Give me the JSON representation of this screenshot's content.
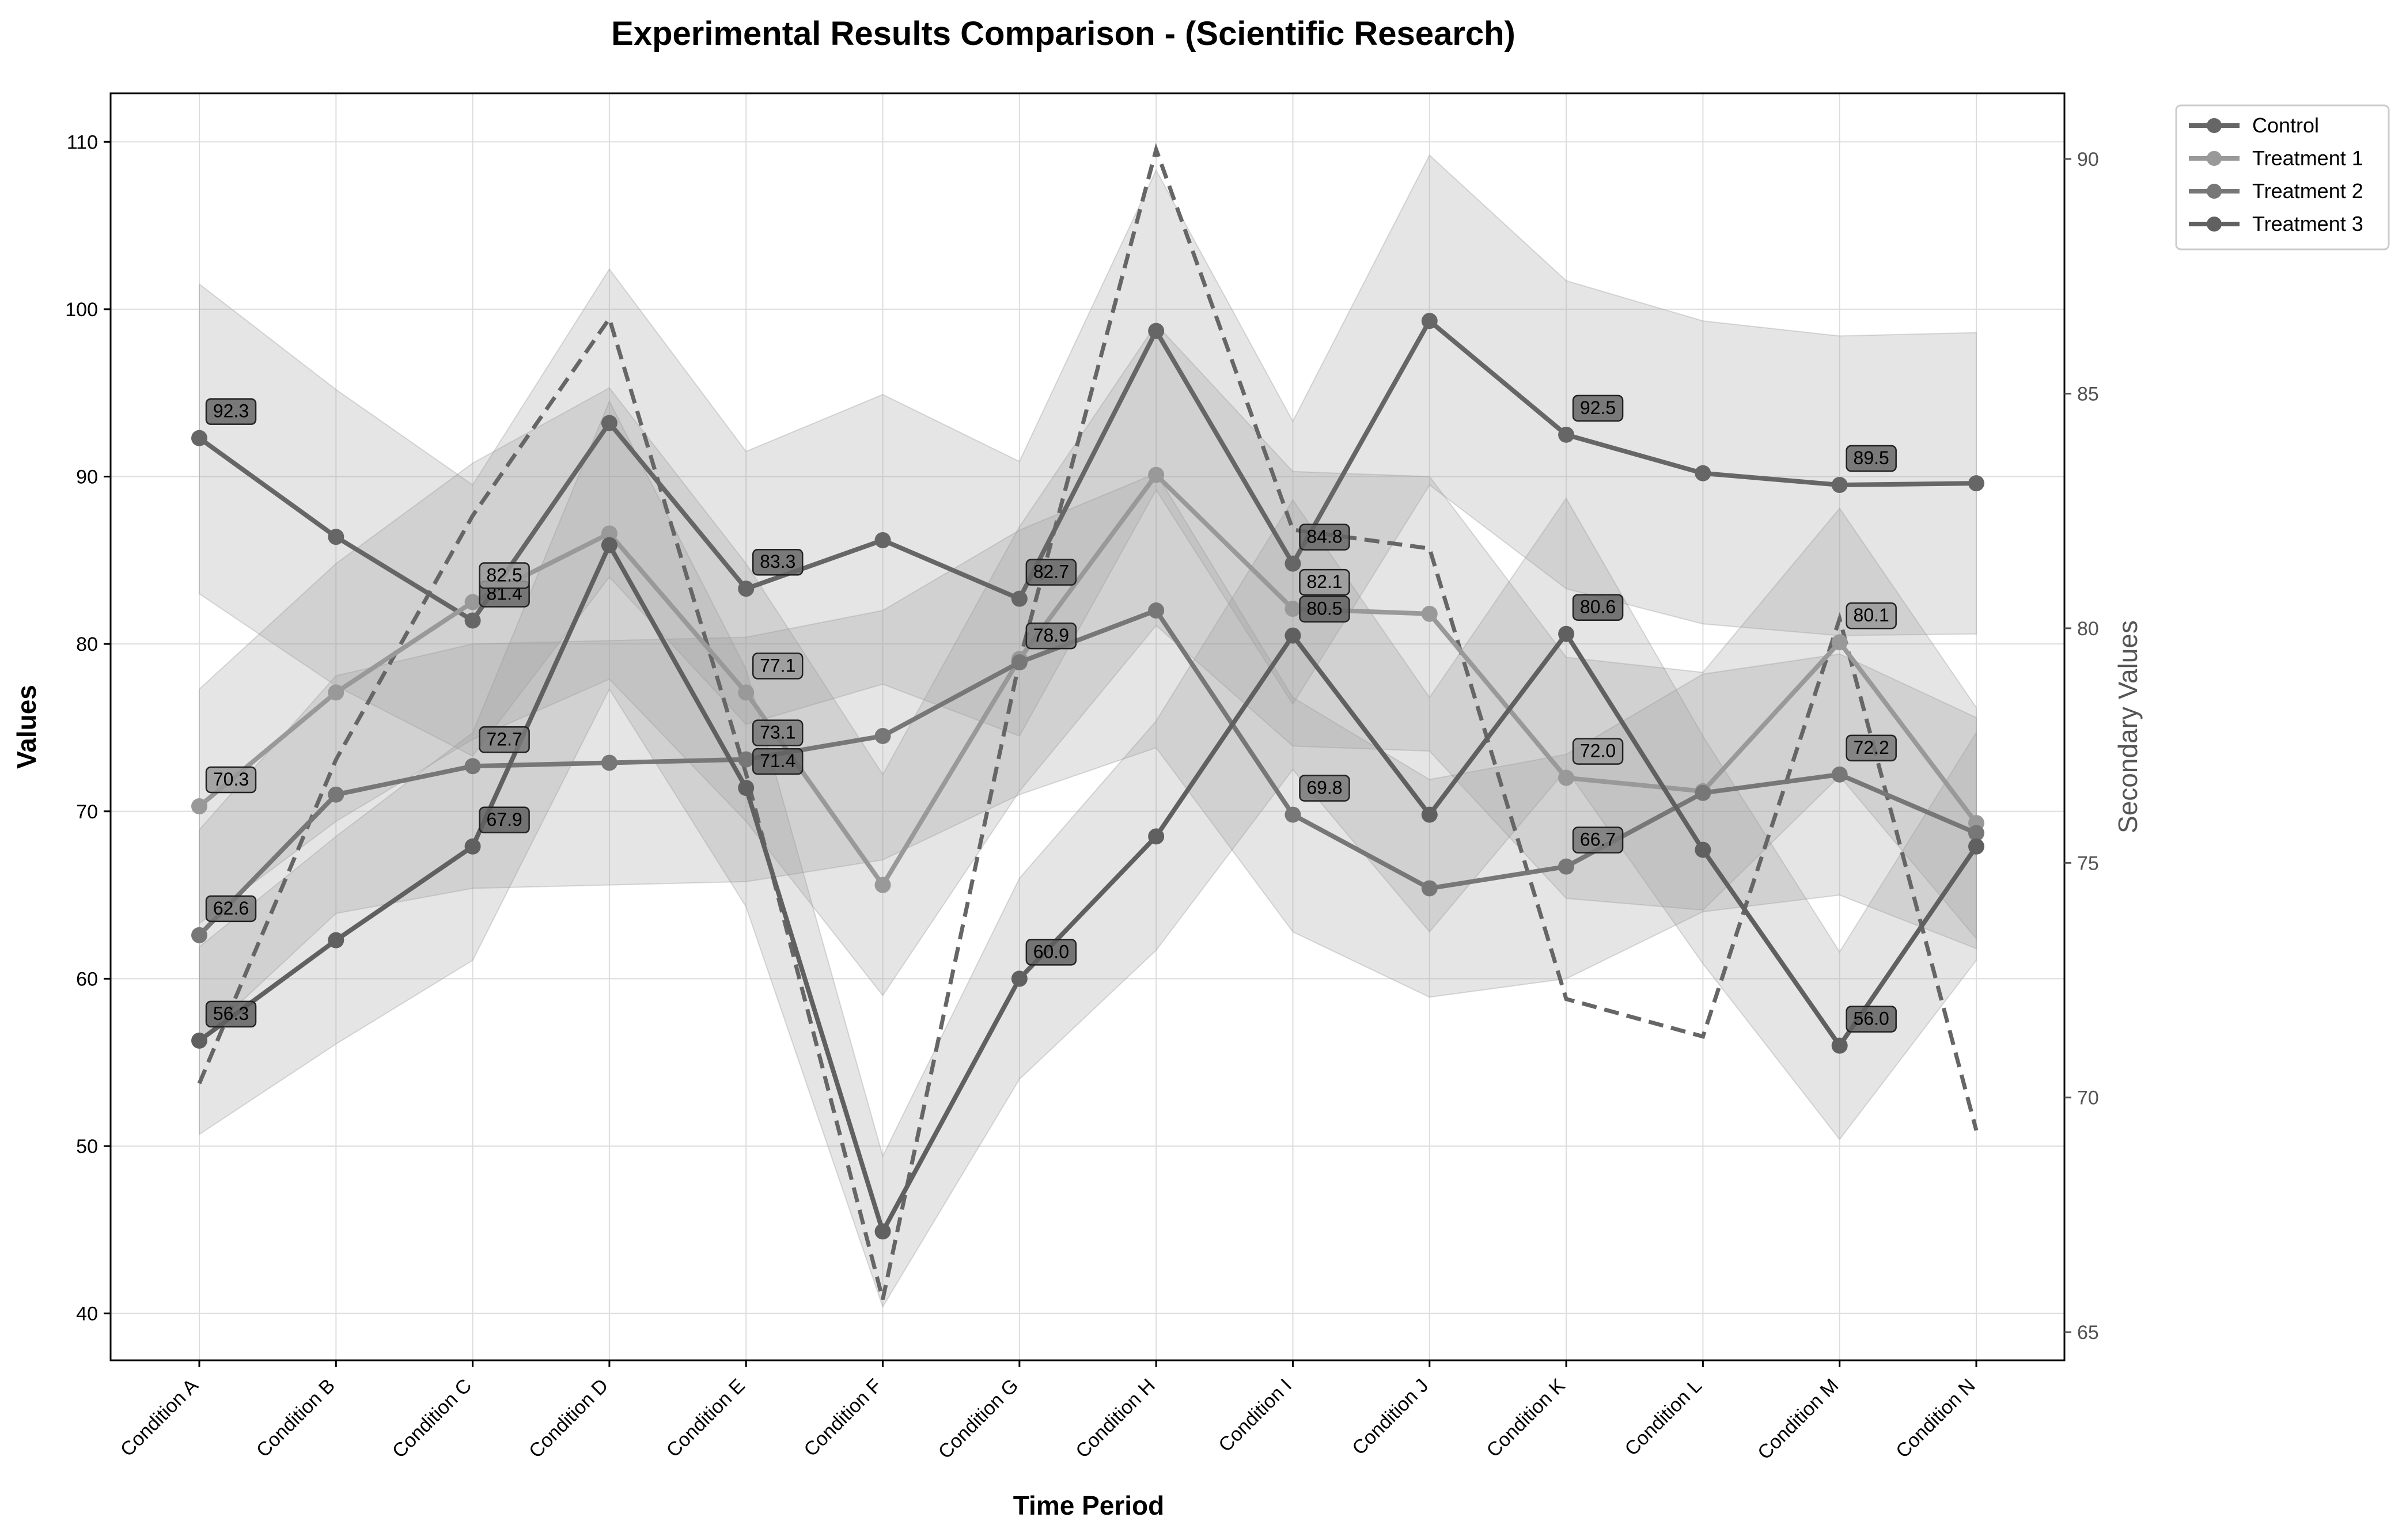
{
  "chart_data": {
    "type": "line",
    "title": "Experimental Results Comparison - (Scientific Research)",
    "xlabel": "Time Period",
    "ylabel": "Values",
    "y2label": "Secondary Values",
    "categories": [
      "Condition A",
      "Condition B",
      "Condition C",
      "Condition D",
      "Condition E",
      "Condition F",
      "Condition G",
      "Condition H",
      "Condition I",
      "Condition J",
      "Condition K",
      "Condition L",
      "Condition M",
      "Condition N"
    ],
    "ylim": [
      37.2,
      112.9
    ],
    "y2lim": [
      64.4,
      91.4
    ],
    "yticks": [
      40,
      50,
      60,
      70,
      80,
      90,
      100,
      110
    ],
    "y2ticks": [
      65,
      70,
      75,
      80,
      85,
      90
    ],
    "grid": true,
    "legend_position": "outside-top-right",
    "series": [
      {
        "name": "Control",
        "color": "#666666",
        "values": [
          92.3,
          86.4,
          81.4,
          93.2,
          83.3,
          86.2,
          82.7,
          98.7,
          84.8,
          99.3,
          92.5,
          90.2,
          89.5,
          89.6
        ],
        "band_lower": [
          83.0,
          77.5,
          73.3,
          84.0,
          75.2,
          77.6,
          74.5,
          89.2,
          76.4,
          89.5,
          83.3,
          81.2,
          80.5,
          80.6
        ],
        "band_upper": [
          101.5,
          95.2,
          89.5,
          102.4,
          91.5,
          94.9,
          90.9,
          108.3,
          93.3,
          109.2,
          101.7,
          99.3,
          98.4,
          98.6
        ],
        "labeled": [
          true,
          false,
          true,
          false,
          true,
          false,
          true,
          false,
          true,
          false,
          true,
          false,
          true,
          false
        ]
      },
      {
        "name": "Treatment 1",
        "color": "#999999",
        "values": [
          70.3,
          77.1,
          82.5,
          86.6,
          77.1,
          65.6,
          79.1,
          90.1,
          82.1,
          81.8,
          72.0,
          71.2,
          80.1,
          69.3
        ],
        "band_lower": [
          63.3,
          69.4,
          74.3,
          77.9,
          69.4,
          59.0,
          71.2,
          81.1,
          73.9,
          73.6,
          64.8,
          64.1,
          72.1,
          62.4
        ],
        "band_upper": [
          77.3,
          84.8,
          90.8,
          95.3,
          84.8,
          72.2,
          87.0,
          99.1,
          90.3,
          90.0,
          79.2,
          78.3,
          88.1,
          76.2
        ],
        "labeled": [
          true,
          false,
          true,
          false,
          true,
          false,
          false,
          false,
          true,
          false,
          true,
          false,
          true,
          false
        ]
      },
      {
        "name": "Treatment 2",
        "color": "#777777",
        "values": [
          62.6,
          71.0,
          72.7,
          72.9,
          73.1,
          74.5,
          78.9,
          82.0,
          69.8,
          65.4,
          66.7,
          71.1,
          72.2,
          68.7
        ],
        "band_lower": [
          56.3,
          63.9,
          65.4,
          65.6,
          65.8,
          67.1,
          71.0,
          73.8,
          62.8,
          58.9,
          60.0,
          64.0,
          65.0,
          61.8
        ],
        "band_upper": [
          68.9,
          78.1,
          80.0,
          80.2,
          80.4,
          82.0,
          86.8,
          90.2,
          76.8,
          71.9,
          73.4,
          78.2,
          79.4,
          75.6
        ],
        "labeled": [
          true,
          false,
          true,
          false,
          true,
          false,
          true,
          false,
          true,
          false,
          true,
          false,
          true,
          false
        ]
      },
      {
        "name": "Treatment 3",
        "color": "#606060",
        "values": [
          56.3,
          62.3,
          67.9,
          85.9,
          71.4,
          44.9,
          60.0,
          68.5,
          80.5,
          69.8,
          80.6,
          67.7,
          56.0,
          67.9
        ],
        "band_lower": [
          50.7,
          56.1,
          61.1,
          77.3,
          64.3,
          40.4,
          54.0,
          61.7,
          72.5,
          62.8,
          72.5,
          60.9,
          50.4,
          61.1
        ],
        "band_upper": [
          61.9,
          68.5,
          74.7,
          94.5,
          78.5,
          49.4,
          66.0,
          75.4,
          88.6,
          76.8,
          88.7,
          74.5,
          61.6,
          74.7
        ],
        "labeled": [
          true,
          false,
          true,
          false,
          true,
          false,
          true,
          false,
          true,
          false,
          true,
          false,
          true,
          false
        ]
      }
    ],
    "secondary_series": {
      "axis": "right",
      "style": "dashed",
      "color": "#666666",
      "values": [
        70.3,
        77.2,
        82.4,
        86.6,
        76.9,
        65.7,
        79.3,
        90.2,
        82.1,
        81.7,
        72.1,
        71.3,
        80.2,
        69.3
      ]
    }
  }
}
